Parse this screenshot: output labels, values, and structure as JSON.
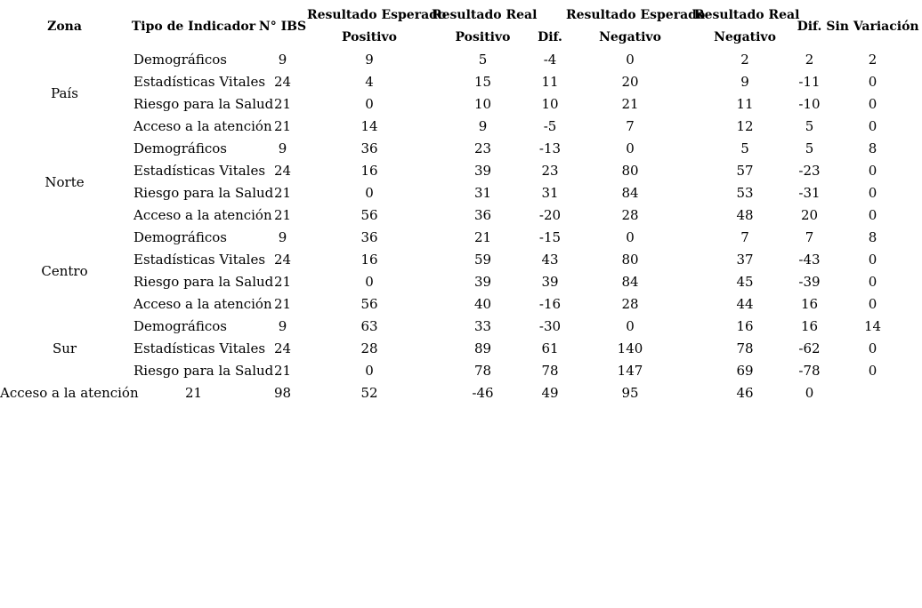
{
  "table": {
    "headers": {
      "zona": "Zona",
      "tipo": "Tipo de Indicador",
      "n_ibs": "N° IBS",
      "resultado_esperado_positivo": [
        "Resultado Esperado",
        "Positivo"
      ],
      "resultado_real_positivo": [
        "Resultado Real",
        "Positivo"
      ],
      "dif_positivo": "Dif.",
      "resultado_esperado_negativo": [
        "Resultado Esperado",
        "Negativo"
      ],
      "resultado_real_negativo": [
        "Resultado Real",
        "Negativo"
      ],
      "dif_negativo": "Dif.",
      "sin_variacion": "Sin Variación"
    },
    "rows": [
      {
        "zona": "País",
        "zona_span": 4,
        "cells": [
          "Demográficos",
          "9",
          "9",
          "5",
          "-4",
          "0",
          "2",
          "2",
          "2"
        ]
      },
      {
        "cells": [
          "Estadísticas Vitales",
          "24",
          "4",
          "15",
          "11",
          "20",
          "9",
          "-11",
          "0"
        ]
      },
      {
        "cells": [
          "Riesgo para la Salud",
          "21",
          "0",
          "10",
          "10",
          "21",
          "11",
          "-10",
          "0"
        ]
      },
      {
        "cells": [
          "Acceso a la atención",
          "21",
          "14",
          "9",
          "-5",
          "7",
          "12",
          "5",
          "0"
        ]
      },
      {
        "zona": "Norte",
        "zona_span": 4,
        "cells": [
          "Demográficos",
          "9",
          "36",
          "23",
          "-13",
          "0",
          "5",
          "5",
          "8"
        ]
      },
      {
        "cells": [
          "Estadísticas Vitales",
          "24",
          "16",
          "39",
          "23",
          "80",
          "57",
          "-23",
          "0"
        ]
      },
      {
        "cells": [
          "Riesgo para la Salud",
          "21",
          "0",
          "31",
          "31",
          "84",
          "53",
          "-31",
          "0"
        ]
      },
      {
        "cells": [
          "Acceso a la atención",
          "21",
          "56",
          "36",
          "-20",
          "28",
          "48",
          "20",
          "0"
        ]
      },
      {
        "zona": "Centro",
        "zona_span": 4,
        "cells": [
          "Demográficos",
          "9",
          "36",
          "21",
          "-15",
          "0",
          "7",
          "7",
          "8"
        ]
      },
      {
        "cells": [
          "Estadísticas Vitales",
          "24",
          "16",
          "59",
          "43",
          "80",
          "37",
          "-43",
          "0"
        ]
      },
      {
        "cells": [
          "Riesgo para la Salud",
          "21",
          "0",
          "39",
          "39",
          "84",
          "45",
          "-39",
          "0"
        ]
      },
      {
        "cells": [
          "Acceso a la atención",
          "21",
          "56",
          "40",
          "-16",
          "28",
          "44",
          "16",
          "0"
        ]
      },
      {
        "zona": "Sur",
        "zona_span": 3,
        "cells": [
          "Demográficos",
          "9",
          "63",
          "33",
          "-30",
          "0",
          "16",
          "16",
          "14"
        ]
      },
      {
        "cells": [
          "Estadísticas Vitales",
          "24",
          "28",
          "89",
          "61",
          "140",
          "78",
          "-62",
          "0"
        ]
      },
      {
        "cells": [
          "Riesgo para la Salud",
          "21",
          "0",
          "78",
          "78",
          "147",
          "69",
          "-78",
          "0"
        ]
      },
      {
        "shifted": true,
        "zona_cell": "Acceso a la atención",
        "cells": [
          "21",
          "98",
          "52",
          "-46",
          "49",
          "95",
          "46",
          "0",
          ""
        ]
      }
    ]
  }
}
